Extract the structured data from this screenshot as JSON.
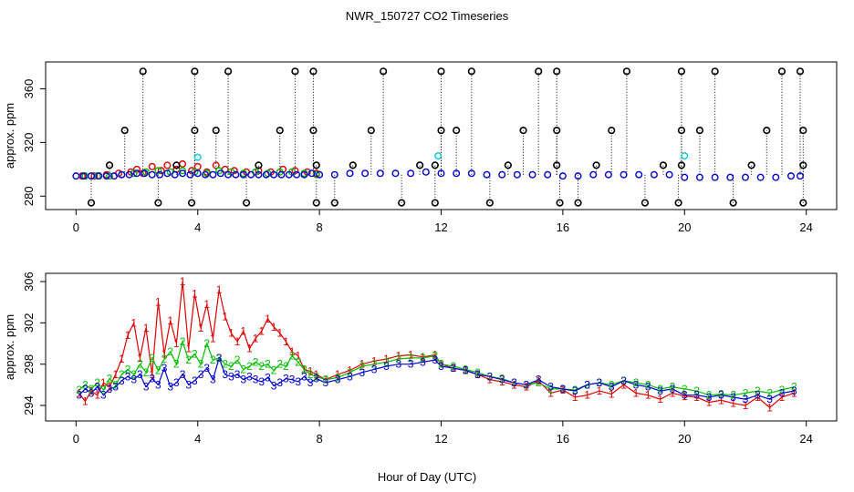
{
  "figure": {
    "title": "NWR_150727  CO2 Timeseries",
    "xlabel": "Hour of Day (UTC)"
  },
  "colors": {
    "axis": "#000000",
    "outlier": "#000000",
    "outlier_cyan": "#00c8d8",
    "series_1": "#e00000",
    "series_2": "#00c000",
    "series_3": "#0000d0",
    "connector": "#000000"
  },
  "chart_data": [
    {
      "type": "scatter",
      "name": "top-panel",
      "ylabel": "approx. ppm",
      "xlim": [
        -1,
        25
      ],
      "ylim": [
        270,
        380
      ],
      "xticks": [
        0,
        4,
        8,
        12,
        16,
        20,
        24
      ],
      "yticks": [
        280,
        320,
        360
      ],
      "grid": false,
      "outliers_high": {
        "y": 373,
        "x": [
          2.2,
          3.9,
          5.0,
          7.2,
          7.8,
          10.1,
          12.0,
          13.0,
          15.2,
          15.8,
          18.1,
          19.9,
          21.0,
          23.2,
          23.8
        ]
      },
      "outliers_mid": {
        "y": 329,
        "x": [
          1.6,
          3.9,
          4.6,
          6.7,
          7.8,
          9.7,
          12.0,
          12.5,
          14.7,
          15.8,
          17.6,
          19.9,
          20.5,
          22.7,
          23.9
        ]
      },
      "outliers_low": {
        "y": 275,
        "x": [
          0.5,
          2.7,
          3.8,
          5.6,
          7.9,
          8.5,
          10.7,
          11.8,
          13.6,
          15.9,
          16.5,
          18.7,
          19.8,
          21.6,
          23.9
        ]
      },
      "outliers_small": {
        "y": 303,
        "x": [
          1.1,
          3.3,
          6.0,
          7.9,
          9.1,
          11.3,
          11.8,
          14.2,
          15.8,
          17.1,
          19.3,
          19.9,
          22.2,
          23.9
        ]
      },
      "outliers_cyan": {
        "x": [
          4.0,
          11.9,
          20.0
        ],
        "y": [
          309,
          310,
          310
        ]
      },
      "series": [
        {
          "name": "1",
          "x": [
            0.2,
            0.6,
            1.0,
            1.4,
            1.8,
            2.0,
            2.2,
            2.5,
            2.8,
            3.0,
            3.3,
            3.5,
            3.8,
            4.0,
            4.3,
            4.6,
            4.9,
            5.2,
            5.6,
            6.0,
            6.4,
            6.8,
            7.2,
            7.6,
            7.9
          ],
          "y": [
            295,
            295,
            296,
            297,
            298,
            300,
            297,
            302,
            299,
            303,
            300,
            304,
            299,
            302,
            298,
            303,
            300,
            299,
            298,
            299,
            298,
            300,
            299,
            298,
            297
          ]
        },
        {
          "name": "2",
          "x": [
            0.3,
            0.7,
            1.1,
            1.5,
            1.9,
            2.3,
            2.7,
            3.1,
            3.5,
            3.9,
            4.3,
            4.7,
            5.1,
            5.5,
            5.9,
            6.3,
            6.7,
            7.1,
            7.5,
            7.9
          ],
          "y": [
            295,
            295,
            295,
            296,
            297,
            298,
            299,
            298,
            299,
            298,
            297,
            299,
            298,
            297,
            298,
            297,
            298,
            298,
            297,
            296
          ]
        },
        {
          "name": "3",
          "x": [
            0.0,
            0.25,
            0.5,
            0.75,
            1.0,
            1.25,
            1.5,
            1.75,
            2.0,
            2.25,
            2.5,
            2.75,
            3.0,
            3.25,
            3.5,
            3.75,
            4.0,
            4.25,
            4.5,
            4.75,
            5.0,
            5.25,
            5.5,
            5.75,
            6.0,
            6.25,
            6.5,
            6.75,
            7.0,
            7.25,
            7.5,
            7.75,
            8.0,
            8.5,
            9.0,
            9.5,
            10.0,
            10.5,
            11.0,
            11.5,
            12.0,
            12.5,
            13.0,
            13.5,
            14.0,
            14.5,
            15.0,
            15.5,
            16.0,
            16.5,
            17.0,
            17.5,
            18.0,
            18.5,
            19.0,
            19.5,
            20.0,
            20.5,
            21.0,
            21.5,
            22.0,
            22.5,
            23.0,
            23.5,
            23.8
          ],
          "y": [
            295,
            295,
            295,
            295,
            295,
            295,
            296,
            296,
            297,
            297,
            296,
            296,
            297,
            296,
            297,
            296,
            297,
            296,
            296,
            297,
            296,
            296,
            296,
            296,
            296,
            296,
            296,
            296,
            296,
            296,
            296,
            297,
            296,
            296,
            297,
            297,
            297,
            297,
            297,
            298,
            297,
            297,
            297,
            296,
            296,
            296,
            296,
            296,
            295,
            295,
            296,
            296,
            296,
            296,
            296,
            296,
            294,
            294,
            294,
            294,
            294,
            294,
            294,
            295,
            295
          ]
        }
      ]
    },
    {
      "type": "line",
      "name": "bottom-panel",
      "ylabel": "approx. ppm",
      "xlim": [
        -1,
        25
      ],
      "ylim": [
        292.5,
        306.8
      ],
      "xticks": [
        0,
        4,
        8,
        12,
        16,
        20,
        24
      ],
      "yticks": [
        294,
        298,
        302,
        306
      ],
      "grid": false,
      "series": [
        {
          "name": "1",
          "marker": "1",
          "x": [
            0.1,
            0.3,
            0.5,
            0.7,
            0.9,
            1.1,
            1.3,
            1.5,
            1.7,
            1.9,
            2.1,
            2.3,
            2.5,
            2.7,
            2.9,
            3.1,
            3.3,
            3.5,
            3.7,
            3.9,
            4.1,
            4.3,
            4.5,
            4.7,
            4.9,
            5.1,
            5.3,
            5.5,
            5.7,
            5.9,
            6.1,
            6.3,
            6.5,
            6.7,
            6.9,
            7.1,
            7.3,
            7.5,
            7.7,
            7.9,
            8.2,
            8.6,
            9.0,
            9.4,
            9.8,
            10.2,
            10.6,
            11.0,
            11.4,
            11.8,
            12.0,
            12.4,
            12.8,
            13.2,
            13.6,
            14.0,
            14.4,
            14.8,
            15.2,
            15.6,
            16.0,
            16.4,
            16.8,
            17.2,
            17.6,
            18.0,
            18.4,
            18.8,
            19.2,
            19.6,
            20.0,
            20.4,
            20.8,
            21.2,
            21.6,
            22.0,
            22.4,
            22.8,
            23.2,
            23.6
          ],
          "y": [
            295.2,
            294.4,
            295.4,
            295.0,
            296.2,
            295.8,
            297.0,
            298.5,
            300.8,
            302.0,
            298.6,
            301.5,
            297.0,
            304.0,
            299.0,
            302.2,
            300.0,
            306.0,
            299.5,
            304.8,
            301.5,
            303.8,
            300.5,
            305.2,
            302.6,
            301.0,
            300.2,
            301.2,
            299.5,
            300.5,
            301.2,
            302.4,
            301.6,
            301.0,
            300.2,
            299.2,
            298.8,
            297.5,
            297.3,
            297.0,
            296.5,
            297.0,
            297.4,
            298.0,
            298.3,
            298.5,
            298.8,
            298.9,
            298.7,
            298.9,
            298.0,
            297.6,
            297.4,
            297.0,
            296.5,
            296.3,
            296.0,
            295.8,
            296.4,
            295.2,
            295.5,
            294.8,
            295.0,
            295.4,
            295.1,
            296.0,
            295.2,
            295.0,
            294.6,
            295.2,
            294.9,
            294.8,
            294.3,
            294.5,
            294.2,
            294.0,
            294.8,
            293.8,
            294.8,
            295.2
          ]
        },
        {
          "name": "2",
          "marker": "2",
          "x": [
            0.1,
            0.3,
            0.5,
            0.7,
            0.9,
            1.1,
            1.3,
            1.5,
            1.7,
            1.9,
            2.1,
            2.3,
            2.5,
            2.7,
            2.9,
            3.1,
            3.3,
            3.5,
            3.7,
            3.9,
            4.1,
            4.3,
            4.5,
            4.7,
            4.9,
            5.1,
            5.3,
            5.5,
            5.7,
            5.9,
            6.1,
            6.3,
            6.5,
            6.7,
            6.9,
            7.1,
            7.3,
            7.5,
            7.7,
            7.9,
            8.2,
            8.6,
            9.0,
            9.4,
            9.8,
            10.2,
            10.6,
            11.0,
            11.4,
            11.8,
            12.0,
            12.4,
            12.8,
            13.2,
            13.6,
            14.0,
            14.4,
            14.8,
            15.2,
            15.6,
            16.0,
            16.4,
            16.8,
            17.2,
            17.6,
            18.0,
            18.4,
            18.8,
            19.2,
            19.6,
            20.0,
            20.4,
            20.8,
            21.2,
            21.6,
            22.0,
            22.4,
            22.8,
            23.2,
            23.6
          ],
          "y": [
            295.5,
            296.0,
            295.6,
            296.2,
            295.5,
            296.6,
            296.0,
            297.0,
            297.5,
            297.0,
            298.0,
            297.2,
            298.6,
            297.4,
            298.5,
            299.2,
            298.0,
            300.2,
            298.4,
            299.0,
            298.0,
            300.0,
            298.4,
            298.6,
            298.0,
            297.8,
            298.4,
            297.5,
            297.8,
            298.2,
            297.8,
            298.0,
            297.4,
            298.0,
            297.8,
            298.8,
            298.2,
            297.5,
            297.0,
            296.8,
            296.5,
            296.7,
            297.2,
            297.8,
            298.0,
            298.2,
            298.5,
            298.6,
            298.6,
            298.8,
            298.0,
            297.8,
            297.5,
            297.2,
            296.8,
            296.6,
            296.2,
            296.0,
            296.2,
            295.6,
            295.6,
            295.5,
            296.0,
            296.2,
            296.0,
            296.4,
            296.2,
            296.0,
            295.6,
            295.8,
            295.6,
            295.4,
            295.0,
            295.1,
            295.0,
            295.2,
            295.4,
            295.2,
            295.5,
            295.8
          ]
        },
        {
          "name": "3",
          "marker": "3",
          "x": [
            0.1,
            0.3,
            0.5,
            0.7,
            0.9,
            1.1,
            1.3,
            1.5,
            1.7,
            1.9,
            2.1,
            2.3,
            2.5,
            2.7,
            2.9,
            3.1,
            3.3,
            3.5,
            3.7,
            3.9,
            4.1,
            4.3,
            4.5,
            4.7,
            4.9,
            5.1,
            5.3,
            5.5,
            5.7,
            5.9,
            6.1,
            6.3,
            6.5,
            6.7,
            6.9,
            7.1,
            7.3,
            7.5,
            7.7,
            7.9,
            8.2,
            8.6,
            9.0,
            9.4,
            9.8,
            10.2,
            10.6,
            11.0,
            11.4,
            11.8,
            12.0,
            12.4,
            12.8,
            13.2,
            13.6,
            14.0,
            14.4,
            14.8,
            15.2,
            15.6,
            16.0,
            16.4,
            16.8,
            17.2,
            17.6,
            18.0,
            18.4,
            18.8,
            19.2,
            19.6,
            20.0,
            20.4,
            20.8,
            21.2,
            21.6,
            22.0,
            22.4,
            22.8,
            23.2,
            23.6
          ],
          "y": [
            295.0,
            295.6,
            295.2,
            295.8,
            295.0,
            295.6,
            295.8,
            296.4,
            296.8,
            296.5,
            297.0,
            295.8,
            296.6,
            296.0,
            297.6,
            295.8,
            296.2,
            297.0,
            296.0,
            296.4,
            297.0,
            297.6,
            296.5,
            298.6,
            297.0,
            296.8,
            297.0,
            296.5,
            296.8,
            296.5,
            296.3,
            296.7,
            295.9,
            296.2,
            296.6,
            296.5,
            296.3,
            296.8,
            296.2,
            296.6,
            296.2,
            296.5,
            296.8,
            297.2,
            297.5,
            297.8,
            298.0,
            298.0,
            298.2,
            298.4,
            297.8,
            297.6,
            297.4,
            297.0,
            296.8,
            296.5,
            296.2,
            296.0,
            296.5,
            295.8,
            295.6,
            295.4,
            296.0,
            296.2,
            295.8,
            296.4,
            296.0,
            295.8,
            295.4,
            295.6,
            295.0,
            295.0,
            294.8,
            295.0,
            294.8,
            294.6,
            295.0,
            294.6,
            295.2,
            295.4
          ]
        }
      ]
    }
  ]
}
